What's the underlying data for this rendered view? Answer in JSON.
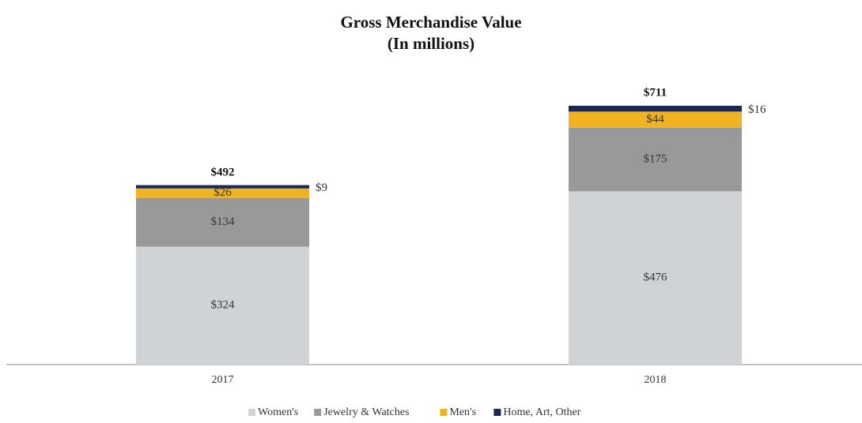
{
  "chart_data": {
    "type": "stacked_bar",
    "title": "Gross Merchandise Value",
    "subtitle": "(In millions)",
    "categories": [
      "2017",
      "2018"
    ],
    "series": [
      {
        "name": "Women's",
        "color": "#d0d3d6",
        "values": [
          324,
          476
        ],
        "value_labels": [
          "$324",
          "$476"
        ]
      },
      {
        "name": "Jewelry & Watches",
        "color": "#999999",
        "values": [
          134,
          175
        ],
        "value_labels": [
          "$134",
          "$175"
        ]
      },
      {
        "name": "Men's",
        "color": "#f2b322",
        "values": [
          26,
          44
        ],
        "value_labels": [
          "$26",
          "$44"
        ]
      },
      {
        "name": "Home, Art, Other",
        "color": "#1c2752",
        "values": [
          9,
          16
        ],
        "value_labels": [
          "$9",
          "$16"
        ]
      }
    ],
    "totals": [
      492,
      711
    ],
    "total_labels": [
      "$492",
      "$711"
    ],
    "legend": "bottom"
  }
}
